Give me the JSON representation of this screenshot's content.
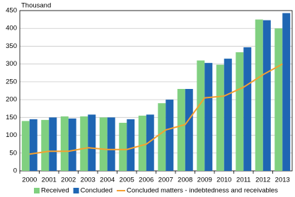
{
  "chart_data": {
    "type": "bar",
    "y_label": "Thousand",
    "categories": [
      "2000",
      "2001",
      "2002",
      "2003",
      "2004",
      "2005",
      "2006",
      "2007",
      "2008",
      "2009",
      "2010",
      "2011",
      "2012",
      "2013"
    ],
    "series": [
      {
        "name": "Received",
        "color": "#80d080",
        "values": [
          140,
          143,
          153,
          153,
          150,
          135,
          155,
          190,
          230,
          310,
          298,
          333,
          425,
          400
        ]
      },
      {
        "name": "Concluded",
        "color": "#1f66b3",
        "values": [
          145,
          150,
          147,
          158,
          150,
          145,
          158,
          200,
          230,
          303,
          315,
          347,
          423,
          443
        ]
      },
      {
        "name": "Concluded matters - indebtedness and receivables",
        "color": "#f5a030",
        "type": "line",
        "values": [
          47,
          55,
          55,
          65,
          60,
          60,
          75,
          115,
          130,
          205,
          210,
          235,
          270,
          300
        ]
      }
    ],
    "ylim": [
      0,
      450
    ],
    "yticks": [
      0,
      50,
      100,
      150,
      200,
      250,
      300,
      350,
      400,
      450
    ],
    "grid": true,
    "legend": "bottom"
  }
}
